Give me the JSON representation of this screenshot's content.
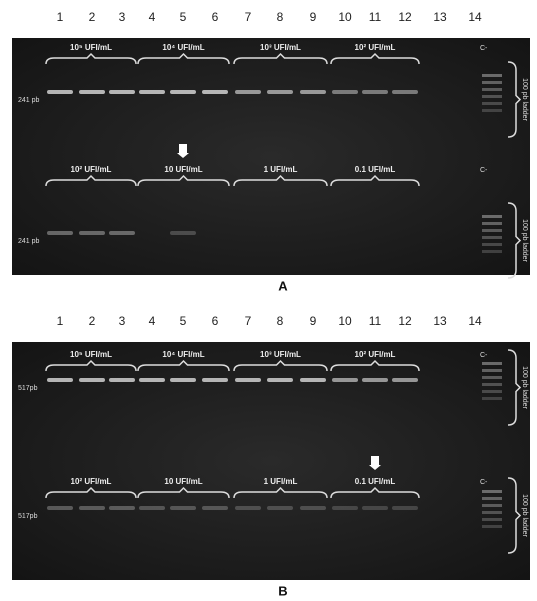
{
  "panels": [
    {
      "label": "A",
      "lanes": [
        "1",
        "2",
        "3",
        "4",
        "5",
        "6",
        "7",
        "8",
        "9",
        "10",
        "11",
        "12",
        "13",
        "14"
      ],
      "rows": [
        {
          "groups": [
            "10⁵ UFI/mL",
            "10⁴ UFI/mL",
            "10³ UFI/mL",
            "10² UFI/mL"
          ],
          "control": "C-",
          "size_marker": "241 pb",
          "ladder": "100 pb ladder"
        },
        {
          "groups": [
            "10² UFI/mL",
            "10 UFI/mL",
            "1 UFI/mL",
            "0.1 UFI/mL"
          ],
          "control": "C-",
          "size_marker": "241 pb",
          "ladder": "100 pb ladder"
        }
      ]
    },
    {
      "label": "B",
      "lanes": [
        "1",
        "2",
        "3",
        "4",
        "5",
        "6",
        "7",
        "8",
        "9",
        "10",
        "11",
        "12",
        "13",
        "14"
      ],
      "rows": [
        {
          "groups": [
            "10⁵ UFI/mL",
            "10⁴ UFI/mL",
            "10³ UFI/mL",
            "10² UFI/mL"
          ],
          "control": "C-",
          "size_marker": "517pb",
          "ladder": "100 pb ladder"
        },
        {
          "groups": [
            "10² UFI/mL",
            "10 UFI/mL",
            "1 UFI/mL",
            "0.1 UFI/mL"
          ],
          "control": "C-",
          "size_marker": "517pb",
          "ladder": "100 pb ladder"
        }
      ]
    }
  ]
}
